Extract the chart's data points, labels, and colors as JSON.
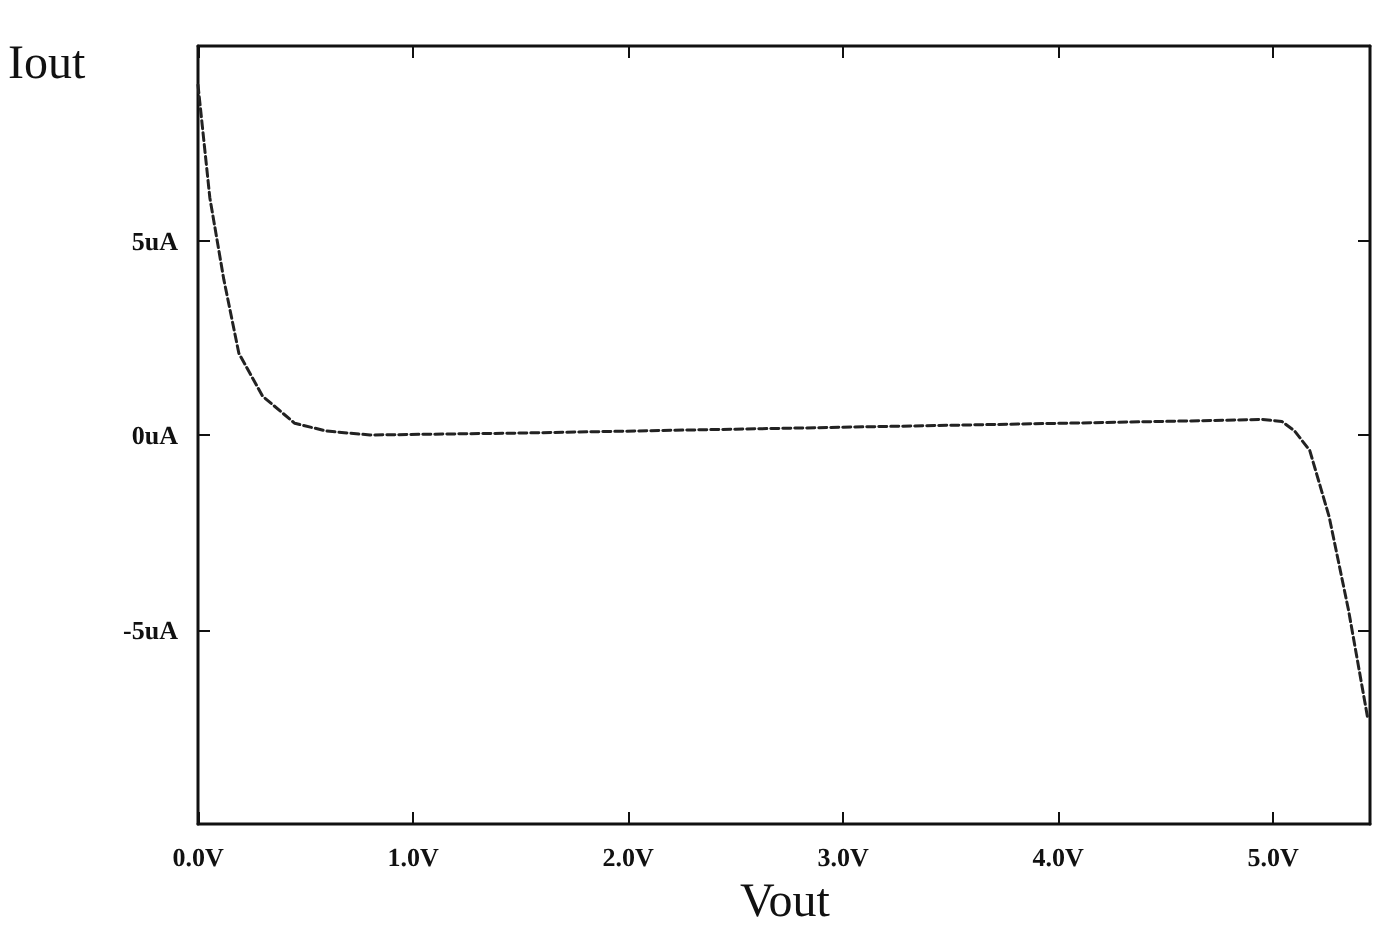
{
  "chart_data": {
    "type": "line",
    "xlabel": "Vout",
    "ylabel": "Iout",
    "xlim": [
      0,
      5.45
    ],
    "ylim": [
      -10,
      10
    ],
    "xticks": [
      {
        "value": 0,
        "label": "0.0V"
      },
      {
        "value": 1,
        "label": "1.0V"
      },
      {
        "value": 2,
        "label": "2.0V"
      },
      {
        "value": 3,
        "label": "3.0V"
      },
      {
        "value": 4,
        "label": "4.0V"
      },
      {
        "value": 5,
        "label": "5.0V"
      }
    ],
    "yticks": [
      {
        "value": -5,
        "label": "-5uA"
      },
      {
        "value": 0,
        "label": "0uA"
      },
      {
        "value": 5,
        "label": "5uA"
      }
    ],
    "grid": false,
    "marker": "none",
    "line_style": "dashed",
    "series": [
      {
        "color": "#222222",
        "x": [
          0,
          0.055,
          0.12,
          0.19,
          0.3,
          0.45,
          0.6,
          0.8,
          1.5,
          2.5,
          3.5,
          4.5,
          4.95,
          5.04,
          5.1,
          5.17,
          5.26,
          5.35,
          5.44
        ],
        "values": [
          9.0,
          6.1,
          4.0,
          2.1,
          1.0,
          0.3,
          0.1,
          0,
          0.05,
          0.15,
          0.25,
          0.35,
          0.4,
          0.35,
          0.1,
          -0.4,
          -2.1,
          -4.5,
          -7.3
        ]
      }
    ]
  }
}
